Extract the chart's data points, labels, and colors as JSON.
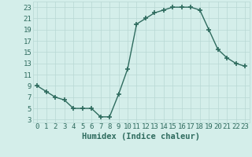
{
  "title": "",
  "xlabel": "Humidex (Indice chaleur)",
  "ylabel": "",
  "x_values": [
    0,
    1,
    2,
    3,
    4,
    5,
    6,
    7,
    8,
    9,
    10,
    11,
    12,
    13,
    14,
    15,
    16,
    17,
    18,
    19,
    20,
    21,
    22,
    23
  ],
  "y_values": [
    9,
    8,
    7,
    6.5,
    5,
    5,
    5,
    3.5,
    3.5,
    7.5,
    12,
    20,
    21,
    22,
    22.5,
    23,
    23,
    23,
    22.5,
    19,
    15.5,
    14,
    13,
    12.5
  ],
  "line_color": "#2e6b5e",
  "marker": "+",
  "marker_size": 4,
  "bg_color": "#d4eeea",
  "grid_color": "#b8d8d4",
  "tick_label_color": "#2e6b5e",
  "xlabel_color": "#2e6b5e",
  "xlim": [
    -0.5,
    23.5
  ],
  "ylim": [
    2.5,
    24
  ],
  "yticks": [
    3,
    5,
    7,
    9,
    11,
    13,
    15,
    17,
    19,
    21,
    23
  ],
  "xticks": [
    0,
    1,
    2,
    3,
    4,
    5,
    6,
    7,
    8,
    9,
    10,
    11,
    12,
    13,
    14,
    15,
    16,
    17,
    18,
    19,
    20,
    21,
    22,
    23
  ],
  "xlabel_fontsize": 7.5,
  "tick_fontsize": 6.5,
  "line_width": 1.0,
  "marker_color": "#2e6b5e",
  "marker_edge_width": 1.2
}
